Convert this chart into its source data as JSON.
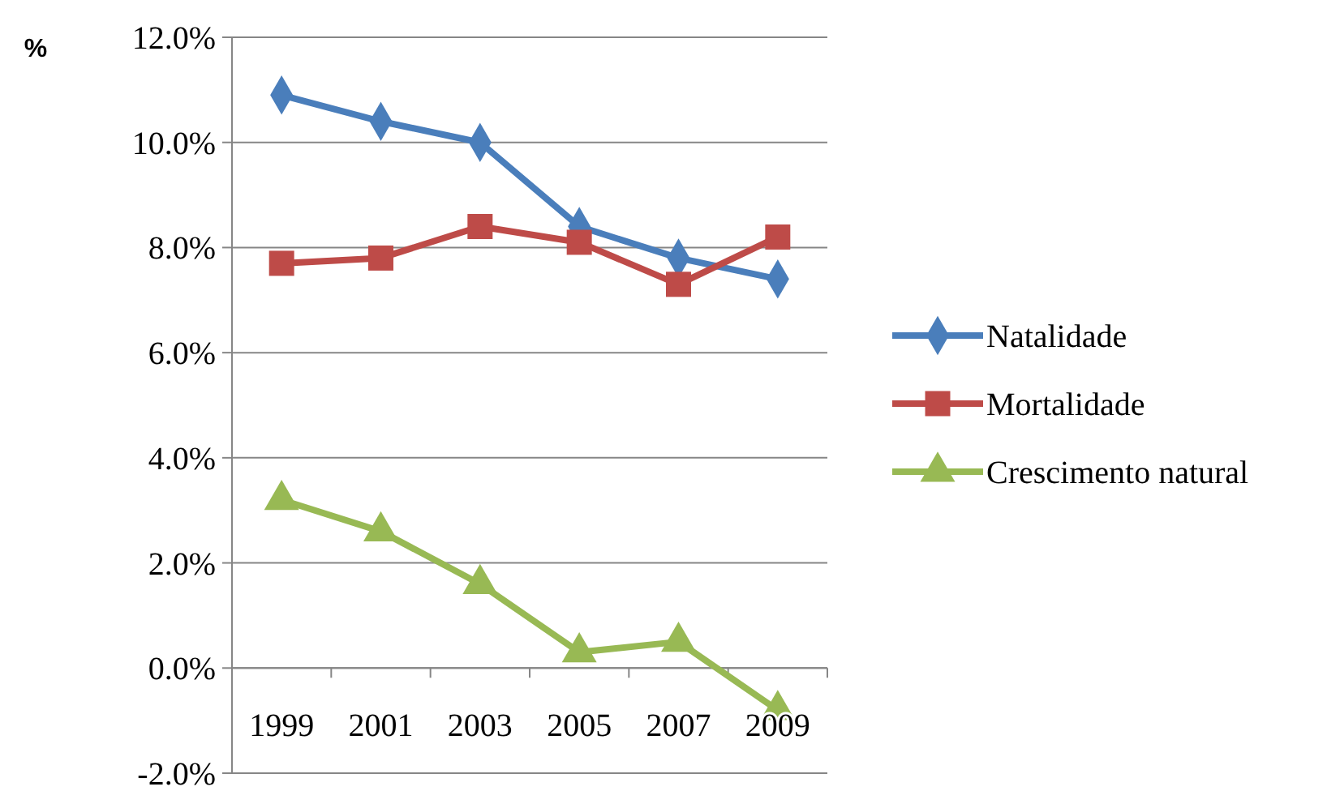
{
  "chart_data": {
    "type": "line",
    "ylabel": "%",
    "categories": [
      "1999",
      "2001",
      "2003",
      "2005",
      "2007",
      "2009"
    ],
    "ylim": [
      -2,
      12
    ],
    "yticks": [
      {
        "value": -2,
        "label": "-2.0%"
      },
      {
        "value": 0,
        "label": "0.0%"
      },
      {
        "value": 2,
        "label": "2.0%"
      },
      {
        "value": 4,
        "label": "4.0%"
      },
      {
        "value": 6,
        "label": "6.0%"
      },
      {
        "value": 8,
        "label": "8.0%"
      },
      {
        "value": 10,
        "label": "10.0%"
      },
      {
        "value": 12,
        "label": "12.0%"
      }
    ],
    "grid": "y",
    "legend": "right",
    "series": [
      {
        "name": "Natalidade",
        "color": "#4a7ebb",
        "marker": "diamond",
        "values": [
          10.9,
          10.4,
          10.0,
          8.4,
          7.8,
          7.4
        ]
      },
      {
        "name": "Mortalidade",
        "color": "#be4b48",
        "marker": "square",
        "values": [
          7.7,
          7.8,
          8.4,
          8.1,
          7.3,
          8.2
        ]
      },
      {
        "name": "Crescimento natural",
        "color": "#98b954",
        "marker": "triangle",
        "values": [
          3.2,
          2.6,
          1.6,
          0.3,
          0.5,
          -0.8
        ]
      }
    ]
  }
}
